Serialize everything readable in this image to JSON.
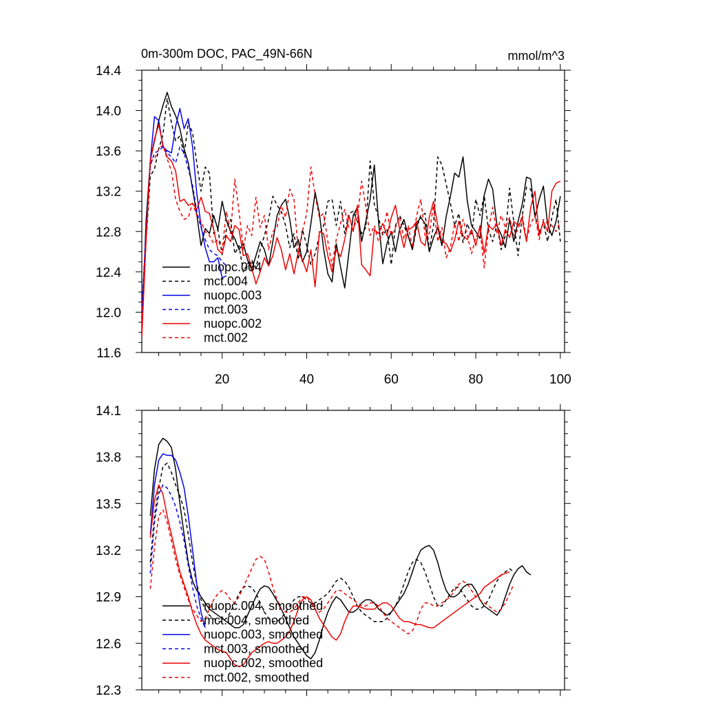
{
  "title_left": "0m-300m DOC, PAC_49N-66N",
  "title_right": "mmol/m^3",
  "colors": {
    "black": "#000000",
    "blue": "#0000e6",
    "red": "#ee0000"
  },
  "chart_data": [
    {
      "type": "line",
      "xlim": [
        1,
        101
      ],
      "ylim": [
        11.6,
        14.4
      ],
      "yticks": [
        11.6,
        12.0,
        12.4,
        12.8,
        13.2,
        13.6,
        14.0,
        14.4
      ],
      "ytick_labels": [
        "11.6",
        "12.0",
        "12.4",
        "12.8",
        "13.2",
        "13.6",
        "14.0",
        "14.4"
      ],
      "xticks": [
        20,
        40,
        60,
        80,
        100
      ],
      "xtick_labels": [
        "20",
        "40",
        "60",
        "80",
        "100"
      ],
      "series": [
        {
          "name": "nuopc.004",
          "color": "black",
          "dash": false,
          "x_start": 1,
          "values": [
            11.8,
            12.9,
            13.5,
            13.7,
            13.9,
            14.05,
            14.18,
            14.04,
            13.95,
            13.82,
            13.62,
            13.48,
            13.22,
            12.97,
            12.66,
            12.83,
            12.78,
            12.96,
            12.82,
            13.1,
            12.91,
            12.8,
            12.73,
            12.62,
            12.68,
            12.52,
            12.42,
            12.56,
            12.7,
            12.62,
            12.46,
            12.7,
            12.96,
            13.06,
            13.12,
            12.92,
            12.64,
            12.72,
            12.5,
            12.6,
            12.88,
            13.19,
            12.98,
            12.63,
            12.38,
            12.3,
            12.68,
            12.45,
            12.24,
            12.6,
            12.96,
            13.04,
            12.7,
            12.9,
            13.12,
            13.46,
            12.9,
            12.48,
            12.68,
            12.8,
            12.6,
            12.82,
            12.92,
            12.76,
            12.62,
            12.88,
            12.94,
            12.88,
            12.6,
            12.74,
            12.84,
            12.66,
            12.95,
            13.15,
            13.38,
            13.34,
            13.54,
            13.1,
            12.86,
            12.8,
            12.73,
            13.16,
            13.32,
            13.22,
            12.86,
            12.77,
            12.64,
            12.92,
            12.7,
            12.9,
            13.07,
            13.34,
            13.32,
            12.94,
            13.12,
            13.25,
            12.87,
            12.76,
            12.9,
            13.15
          ]
        },
        {
          "name": "mct.004",
          "color": "black",
          "dash": true,
          "x_start": 1,
          "values": [
            11.9,
            12.7,
            13.35,
            13.42,
            13.62,
            13.76,
            14.12,
            13.88,
            13.7,
            13.75,
            13.56,
            13.88,
            13.78,
            13.48,
            13.2,
            13.44,
            13.38,
            12.78,
            12.82,
            12.57,
            12.82,
            12.92,
            12.58,
            12.66,
            12.4,
            12.48,
            12.52,
            12.44,
            12.62,
            12.76,
            12.92,
            13.15,
            13.06,
            13.0,
            12.86,
            12.64,
            12.78,
            12.52,
            12.82,
            12.66,
            12.47,
            12.58,
            12.76,
            12.86,
            13.1,
            13.12,
            12.86,
            13.1,
            12.78,
            12.98,
            13.0,
            12.9,
            12.78,
            12.84,
            13.5,
            13.07,
            12.94,
            12.76,
            12.83,
            12.47,
            12.86,
            12.96,
            12.86,
            12.76,
            12.62,
            12.84,
            12.96,
            12.98,
            12.62,
            12.86,
            13.54,
            13.46,
            13.27,
            13.08,
            12.86,
            12.98,
            12.69,
            12.88,
            12.76,
            13.12,
            12.96,
            13.16,
            12.82,
            12.7,
            12.87,
            12.62,
            12.76,
            13.23,
            12.89,
            12.56,
            12.96,
            13.24,
            13.22,
            12.96,
            12.8,
            12.88,
            12.7,
            12.94,
            13.12,
            12.7
          ]
        },
        {
          "name": "nuopc.003",
          "color": "blue",
          "dash": false,
          "x_start": 1,
          "values": [
            12.0,
            12.8,
            13.5,
            13.94,
            13.9,
            13.64,
            13.6,
            13.58,
            13.84,
            14.02,
            13.82,
            13.92,
            13.64,
            13.18,
            12.86,
            12.64,
            12.5,
            12.5,
            12.54,
            12.34,
            12.36
          ]
        },
        {
          "name": "mct.003",
          "color": "blue",
          "dash": true,
          "x_start": 1,
          "values": [
            12.0,
            12.8,
            13.45,
            13.58,
            13.6,
            13.64,
            13.58,
            13.54,
            13.48,
            13.64,
            13.58,
            13.42,
            13.26,
            13.0,
            12.84,
            12.72,
            12.62,
            12.58,
            12.56,
            12.5,
            12.46
          ]
        },
        {
          "name": "nuopc.002",
          "color": "red",
          "dash": false,
          "x_start": 1,
          "values": [
            11.76,
            12.7,
            13.5,
            13.72,
            13.86,
            13.66,
            13.54,
            13.5,
            13.4,
            13.1,
            13.12,
            13.06,
            13.08,
            13.02,
            13.14,
            13.0,
            12.98,
            12.82,
            12.62,
            12.58,
            12.76,
            12.7,
            12.86,
            12.82,
            12.56,
            12.58,
            12.44,
            12.28,
            12.4,
            12.54,
            12.46,
            12.56,
            12.74,
            12.62,
            12.42,
            12.58,
            12.38,
            12.6,
            12.52,
            12.4,
            12.62,
            12.25,
            12.8,
            12.78,
            12.56,
            12.4,
            12.62,
            12.55,
            12.72,
            12.96,
            12.8,
            13.06,
            12.47,
            12.42,
            12.36,
            12.82,
            12.78,
            12.88,
            12.76,
            12.94,
            13.06,
            12.82,
            12.64,
            12.82,
            12.84,
            12.9,
            12.7,
            12.66,
            12.94,
            13.1,
            12.86,
            12.7,
            12.68,
            12.6,
            12.72,
            12.9,
            12.76,
            12.72,
            12.82,
            12.66,
            12.86,
            12.58,
            12.86,
            12.82,
            12.88,
            12.66,
            12.82,
            12.74,
            12.9,
            12.86,
            12.92,
            12.7,
            13.04,
            13.2,
            12.76,
            12.9,
            12.8,
            13.2,
            13.28,
            13.3
          ]
        },
        {
          "name": "mct.002",
          "color": "red",
          "dash": true,
          "x_start": 1,
          "values": [
            11.9,
            12.8,
            13.5,
            13.52,
            13.62,
            13.66,
            13.52,
            13.4,
            13.12,
            13.0,
            12.92,
            12.94,
            13.08,
            12.96,
            12.9,
            12.8,
            12.76,
            12.68,
            12.72,
            12.62,
            13.0,
            12.78,
            13.32,
            13.0,
            12.62,
            12.86,
            12.76,
            13.14,
            12.84,
            12.96,
            12.62,
            12.8,
            12.84,
            13.06,
            12.94,
            13.22,
            13.12,
            12.6,
            12.8,
            12.98,
            13.44,
            13.16,
            12.94,
            12.98,
            12.7,
            12.46,
            12.72,
            12.88,
            13.02,
            12.83,
            12.82,
            12.94,
            13.3,
            13.04,
            12.76,
            12.86,
            12.7,
            12.78,
            13.0,
            12.76,
            12.84,
            12.94,
            12.72,
            12.86,
            12.64,
            12.96,
            13.12,
            12.76,
            12.78,
            13.06,
            12.7,
            12.84,
            12.54,
            12.64,
            12.88,
            12.7,
            12.92,
            12.76,
            12.58,
            12.74,
            12.82,
            12.44,
            12.82,
            13.04,
            12.78,
            12.96,
            12.84,
            12.94,
            12.76,
            12.82,
            12.96,
            12.72,
            12.88,
            12.96,
            12.72,
            12.92,
            12.88,
            12.86,
            12.8,
            12.9
          ]
        }
      ]
    },
    {
      "type": "line",
      "xlim": [
        1,
        101
      ],
      "ylim": [
        12.3,
        14.1
      ],
      "yticks": [
        12.3,
        12.6,
        12.9,
        13.2,
        13.5,
        13.8,
        14.1
      ],
      "ytick_labels": [
        "12.3",
        "12.6",
        "12.9",
        "13.2",
        "13.5",
        "13.8",
        "14.1"
      ],
      "xticks": [
        20,
        40,
        60,
        80,
        100
      ],
      "series": [
        {
          "name": "nuopc.004, smoothed",
          "color": "black",
          "dash": false,
          "x_start": 3,
          "values": [
            13.42,
            13.72,
            13.88,
            13.92,
            13.9,
            13.86,
            13.72,
            13.5,
            13.3,
            13.12,
            13.0,
            12.94,
            12.9,
            12.86,
            12.82,
            12.8,
            12.78,
            12.76,
            12.74,
            12.72,
            12.7,
            12.7,
            12.72,
            12.78,
            12.84,
            12.9,
            12.95,
            12.97,
            12.96,
            12.92,
            12.87,
            12.82,
            12.76,
            12.7,
            12.64,
            12.6,
            12.56,
            12.52,
            12.5,
            12.54,
            12.62,
            12.72,
            12.8,
            12.86,
            12.9,
            12.88,
            12.84,
            12.8,
            12.8,
            12.82,
            12.86,
            12.88,
            12.88,
            12.86,
            12.82,
            12.8,
            12.78,
            12.8,
            12.84,
            12.88,
            12.92,
            12.98,
            13.06,
            13.14,
            13.2,
            13.22,
            13.23,
            13.2,
            13.12,
            13.02,
            12.94,
            12.9,
            12.9,
            12.92,
            12.96,
            12.98,
            12.98,
            12.94,
            12.88,
            12.84,
            12.82,
            12.8,
            12.78,
            12.82,
            12.9,
            12.98,
            13.04,
            13.08,
            13.1,
            13.06,
            13.04
          ]
        },
        {
          "name": "mct.004, smoothed",
          "color": "black",
          "dash": true,
          "x_start": 3,
          "values": [
            13.12,
            13.42,
            13.6,
            13.74,
            13.76,
            13.7,
            13.62,
            13.55,
            13.46,
            13.3,
            13.12,
            12.98,
            12.88,
            12.82,
            12.78,
            12.76,
            12.74,
            12.74,
            12.76,
            12.8,
            12.86,
            12.92,
            12.96,
            12.97,
            12.96,
            12.92,
            12.86,
            12.8,
            12.76,
            12.74,
            12.74,
            12.76,
            12.8,
            12.84,
            12.88,
            12.9,
            12.9,
            12.88,
            12.86,
            12.86,
            12.88,
            12.9,
            12.92,
            12.96,
            13.0,
            13.02,
            13.0,
            12.96,
            12.9,
            12.84,
            12.8,
            12.78,
            12.76,
            12.74,
            12.74,
            12.74,
            12.76,
            12.8,
            12.84,
            12.9,
            12.98,
            13.06,
            13.12,
            13.14,
            13.12,
            13.06,
            12.98,
            12.9,
            12.84,
            12.84,
            12.88,
            12.92,
            12.96,
            12.96,
            12.92,
            12.88,
            12.84,
            12.82,
            12.82,
            12.84,
            12.88,
            12.94,
            13.0,
            13.04,
            13.06,
            13.08,
            13.06
          ]
        },
        {
          "name": "nuopc.003, smoothed",
          "color": "blue",
          "dash": false,
          "x_start": 3,
          "values": [
            13.3,
            13.62,
            13.78,
            13.82,
            13.81,
            13.81,
            13.78,
            13.7,
            13.6,
            13.42,
            13.2,
            12.98,
            12.8,
            12.7
          ]
        },
        {
          "name": "mct.003, smoothed",
          "color": "blue",
          "dash": true,
          "x_start": 3,
          "values": [
            13.05,
            13.38,
            13.56,
            13.62,
            13.6,
            13.55,
            13.48,
            13.38,
            13.26,
            13.1,
            12.96,
            12.84,
            12.76,
            12.7
          ]
        },
        {
          "name": "nuopc.002, smoothed",
          "color": "red",
          "dash": false,
          "x_start": 3,
          "values": [
            13.28,
            13.52,
            13.62,
            13.56,
            13.42,
            13.3,
            13.18,
            13.06,
            12.98,
            12.9,
            12.8,
            12.72,
            12.66,
            12.62,
            12.6,
            12.58,
            12.56,
            12.55,
            12.54,
            12.5,
            12.46,
            12.45,
            12.46,
            12.5,
            12.54,
            12.56,
            12.58,
            12.6,
            12.61,
            12.6,
            12.6,
            12.62,
            12.64,
            12.68,
            12.74,
            12.82,
            12.88,
            12.9,
            12.88,
            12.82,
            12.76,
            12.72,
            12.68,
            12.64,
            12.62,
            12.66,
            12.74,
            12.8,
            12.84,
            12.84,
            12.83,
            12.82,
            12.82,
            12.82,
            12.84,
            12.86,
            12.86,
            12.84,
            12.8,
            12.76,
            12.74,
            12.74,
            12.73,
            12.72,
            12.72,
            12.71,
            12.7,
            12.7,
            12.72,
            12.74,
            12.76,
            12.78,
            12.8,
            12.82,
            12.84,
            12.86,
            12.88,
            12.9,
            12.92,
            12.96,
            12.98,
            13.0,
            13.02,
            13.04,
            13.05,
            13.06
          ]
        },
        {
          "name": "mct.002, smoothed",
          "color": "red",
          "dash": true,
          "x_start": 3,
          "values": [
            12.95,
            13.22,
            13.42,
            13.46,
            13.38,
            13.26,
            13.14,
            13.04,
            12.96,
            12.88,
            12.82,
            12.78,
            12.74,
            12.76,
            12.82,
            12.88,
            12.92,
            12.94,
            12.92,
            12.88,
            12.86,
            12.9,
            12.96,
            13.02,
            13.08,
            13.14,
            13.16,
            13.14,
            13.06,
            12.96,
            12.88,
            12.82,
            12.8,
            12.8,
            12.82,
            12.86,
            12.9,
            12.9,
            12.86,
            12.82,
            12.8,
            12.82,
            12.86,
            12.9,
            12.94,
            12.94,
            12.92,
            12.9,
            12.88,
            12.86,
            12.84,
            12.84,
            12.86,
            12.86,
            12.84,
            12.8,
            12.76,
            12.74,
            12.72,
            12.7,
            12.68,
            12.66,
            12.68,
            12.74,
            12.82,
            12.86,
            12.86,
            12.84,
            12.84,
            12.86,
            12.88,
            12.9,
            12.94,
            12.98,
            13.0,
            12.98,
            12.94,
            12.9,
            12.88,
            12.86,
            12.84,
            12.82,
            12.8,
            12.82,
            12.86,
            12.92,
            12.98
          ]
        }
      ]
    }
  ]
}
